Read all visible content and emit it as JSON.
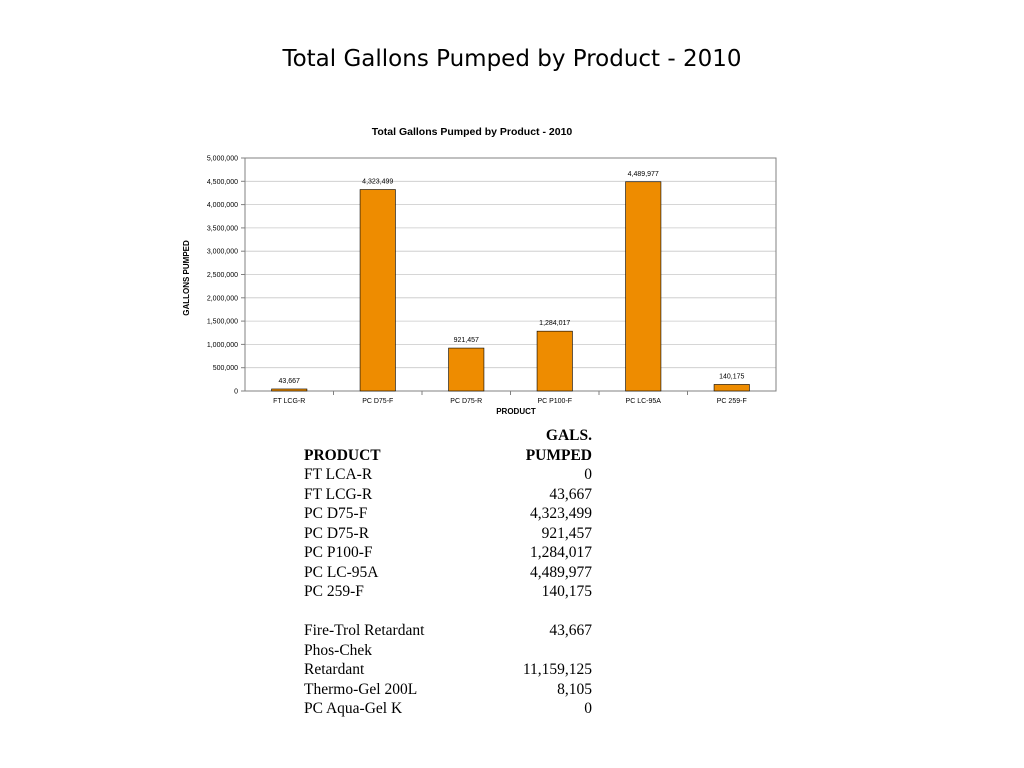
{
  "slide_title": "Total Gallons Pumped by Product - 2010",
  "chart_data": {
    "type": "bar",
    "title": "Total Gallons Pumped by Product - 2010",
    "xlabel": "PRODUCT",
    "ylabel": "GALLONS PUMPED",
    "categories": [
      "FT LCG-R",
      "PC D75-F",
      "PC D75-R",
      "PC P100-F",
      "PC LC-95A",
      "PC 259-F"
    ],
    "values": [
      43667,
      4323499,
      921457,
      1284017,
      4489977,
      140175
    ],
    "data_labels": [
      "43,667",
      "4,323,499",
      "921,457",
      "1,284,017",
      "4,489,977",
      "140,175"
    ],
    "ylim": [
      0,
      5000000
    ],
    "yticks": [
      "0",
      "500,000",
      "1,000,000",
      "1,500,000",
      "2,000,000",
      "2,500,000",
      "3,000,000",
      "3,500,000",
      "4,000,000",
      "4,500,000",
      "5,000,000"
    ],
    "grid": true,
    "bar_color": "#EE8C00"
  },
  "table": {
    "header": {
      "col1": "PRODUCT",
      "col2_line1": "GALS.",
      "col2_line2": "PUMPED"
    },
    "rows": [
      {
        "product": "FT LCA-R",
        "value": "0"
      },
      {
        "product": "FT LCG-R",
        "value": "43,667"
      },
      {
        "product": "PC D75-F",
        "value": "4,323,499"
      },
      {
        "product": "PC D75-R",
        "value": "921,457"
      },
      {
        "product": "PC P100-F",
        "value": "1,284,017"
      },
      {
        "product": "PC LC-95A",
        "value": "4,489,977"
      },
      {
        "product": "PC 259-F",
        "value": "140,175"
      }
    ],
    "summary": [
      {
        "product": "Fire-Trol Retardant",
        "value": "43,667"
      },
      {
        "product_line1": "Phos-Chek",
        "product_line2": "Retardant",
        "value": "11,159,125"
      },
      {
        "product": "Thermo-Gel 200L",
        "value": "8,105"
      },
      {
        "product": "PC Aqua-Gel K",
        "value": "0"
      }
    ]
  }
}
